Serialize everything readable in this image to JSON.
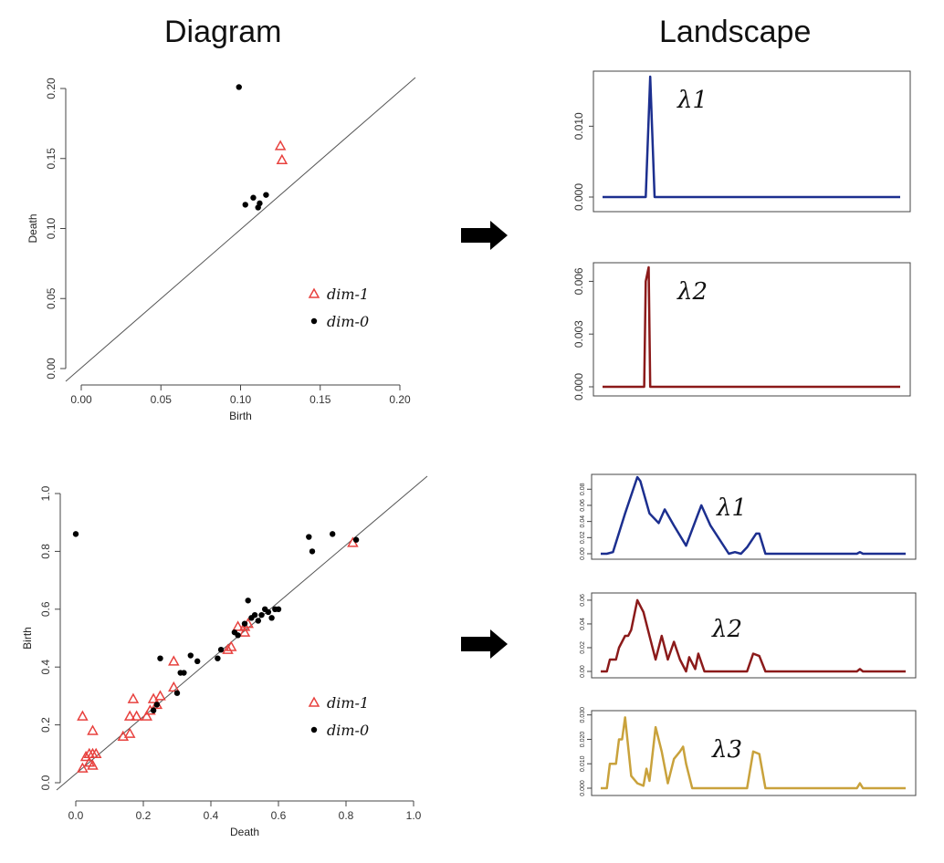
{
  "headings": {
    "left": "Diagram",
    "right": "Landscape"
  },
  "colors": {
    "dim1": "#e8413e",
    "dim0": "#000000",
    "lambda1": "#1c2f8f",
    "lambda2": "#8b1a1a",
    "lambda3": "#c9a23c",
    "diagonal": "#555555"
  },
  "chart_data": [
    {
      "id": "diagram-top",
      "type": "scatter",
      "xlabel": "Birth",
      "ylabel": "Death",
      "xlim": [
        0,
        0.2
      ],
      "ylim": [
        0,
        0.2
      ],
      "xticks": [
        "0.00",
        "0.05",
        "0.10",
        "0.15",
        "0.20"
      ],
      "yticks": [
        "0.00",
        "0.05",
        "0.10",
        "0.15",
        "0.20"
      ],
      "diagonal": true,
      "legend": [
        {
          "label": "dim-1",
          "marker": "triangle"
        },
        {
          "label": "dim-0",
          "marker": "dot"
        }
      ],
      "series": [
        {
          "name": "dim-1",
          "marker": "triangle",
          "points": [
            [
              0.125,
              0.159
            ],
            [
              0.126,
              0.149
            ]
          ]
        },
        {
          "name": "dim-0",
          "marker": "dot",
          "points": [
            [
              0.099,
              0.201
            ],
            [
              0.103,
              0.117
            ],
            [
              0.108,
              0.122
            ],
            [
              0.111,
              0.115
            ],
            [
              0.112,
              0.118
            ],
            [
              0.116,
              0.124
            ]
          ]
        }
      ]
    },
    {
      "id": "diagram-bottom",
      "type": "scatter",
      "xlabel": "Death",
      "ylabel": "Birth",
      "xlim": [
        0,
        1.0
      ],
      "ylim": [
        0,
        1.0
      ],
      "xticks": [
        "0.0",
        "0.2",
        "0.4",
        "0.6",
        "0.8",
        "1.0"
      ],
      "yticks": [
        "0.0",
        "0.2",
        "0.4",
        "0.6",
        "0.8",
        "1.0"
      ],
      "diagonal": true,
      "legend": [
        {
          "label": "dim-1",
          "marker": "triangle"
        },
        {
          "label": "dim-0",
          "marker": "dot"
        }
      ],
      "series": [
        {
          "name": "dim-1",
          "marker": "triangle",
          "points": [
            [
              0.02,
              0.23
            ],
            [
              0.02,
              0.05
            ],
            [
              0.03,
              0.09
            ],
            [
              0.04,
              0.1
            ],
            [
              0.04,
              0.07
            ],
            [
              0.05,
              0.18
            ],
            [
              0.05,
              0.1
            ],
            [
              0.05,
              0.06
            ],
            [
              0.06,
              0.1
            ],
            [
              0.14,
              0.16
            ],
            [
              0.16,
              0.17
            ],
            [
              0.16,
              0.23
            ],
            [
              0.17,
              0.29
            ],
            [
              0.18,
              0.23
            ],
            [
              0.21,
              0.23
            ],
            [
              0.22,
              0.25
            ],
            [
              0.23,
              0.29
            ],
            [
              0.24,
              0.27
            ],
            [
              0.25,
              0.3
            ],
            [
              0.29,
              0.42
            ],
            [
              0.29,
              0.33
            ],
            [
              0.45,
              0.46
            ],
            [
              0.46,
              0.47
            ],
            [
              0.48,
              0.54
            ],
            [
              0.5,
              0.52
            ],
            [
              0.5,
              0.54
            ],
            [
              0.51,
              0.55
            ],
            [
              0.82,
              0.83
            ]
          ]
        },
        {
          "name": "dim-0",
          "marker": "dot",
          "points": [
            [
              0.0,
              0.86
            ],
            [
              0.23,
              0.25
            ],
            [
              0.24,
              0.27
            ],
            [
              0.25,
              0.43
            ],
            [
              0.3,
              0.31
            ],
            [
              0.31,
              0.38
            ],
            [
              0.32,
              0.38
            ],
            [
              0.34,
              0.44
            ],
            [
              0.36,
              0.42
            ],
            [
              0.42,
              0.43
            ],
            [
              0.43,
              0.46
            ],
            [
              0.47,
              0.52
            ],
            [
              0.48,
              0.51
            ],
            [
              0.5,
              0.55
            ],
            [
              0.51,
              0.63
            ],
            [
              0.52,
              0.57
            ],
            [
              0.53,
              0.58
            ],
            [
              0.54,
              0.56
            ],
            [
              0.55,
              0.58
            ],
            [
              0.56,
              0.6
            ],
            [
              0.57,
              0.59
            ],
            [
              0.58,
              0.57
            ],
            [
              0.59,
              0.6
            ],
            [
              0.6,
              0.6
            ],
            [
              0.69,
              0.85
            ],
            [
              0.7,
              0.8
            ],
            [
              0.76,
              0.86
            ],
            [
              0.83,
              0.84
            ]
          ]
        }
      ]
    },
    {
      "id": "landscape-top-1",
      "type": "line",
      "label": "λ1",
      "ylim": [
        0,
        0.017
      ],
      "yticks": [
        "0.000",
        "0.010"
      ],
      "series": [
        {
          "name": "λ1",
          "color": "lambda1",
          "x": [
            0,
            0.12,
            0.145,
            0.16,
            0.175,
            1.0
          ],
          "y": [
            0,
            0,
            0,
            0.017,
            0,
            0
          ]
        }
      ]
    },
    {
      "id": "landscape-top-2",
      "type": "line",
      "label": "λ2",
      "ylim": [
        0,
        0.0068
      ],
      "yticks": [
        "0.000",
        "0.003",
        "0.006"
      ],
      "series": [
        {
          "name": "λ2",
          "color": "lambda2",
          "x": [
            0,
            0.12,
            0.14,
            0.145,
            0.155,
            0.16,
            0.17,
            1.0
          ],
          "y": [
            0,
            0,
            0,
            0.006,
            0.0068,
            0,
            0,
            0
          ]
        }
      ]
    },
    {
      "id": "landscape-bottom-1",
      "type": "line",
      "label": "λ1",
      "ylim": [
        0,
        0.095
      ],
      "yticks": [
        "0.00",
        "0.02",
        "0.04",
        "0.06",
        "0.08"
      ],
      "series": [
        {
          "name": "λ1",
          "color": "lambda1",
          "x": [
            0,
            0.02,
            0.04,
            0.08,
            0.12,
            0.13,
            0.16,
            0.19,
            0.21,
            0.24,
            0.28,
            0.33,
            0.36,
            0.42,
            0.44,
            0.46,
            0.48,
            0.51,
            0.52,
            0.54,
            0.56,
            0.84,
            0.85,
            0.86,
            1.0
          ],
          "y": [
            0,
            0,
            0.002,
            0.05,
            0.095,
            0.09,
            0.05,
            0.038,
            0.055,
            0.035,
            0.01,
            0.06,
            0.035,
            0,
            0.002,
            0,
            0.008,
            0.025,
            0.025,
            0,
            0,
            0,
            0.002,
            0,
            0
          ]
        }
      ]
    },
    {
      "id": "landscape-bottom-2",
      "type": "line",
      "label": "λ2",
      "ylim": [
        0,
        0.063
      ],
      "yticks": [
        "0.00",
        "0.02",
        "0.04",
        "0.06"
      ],
      "series": [
        {
          "name": "λ2",
          "color": "lambda2",
          "x": [
            0,
            0.02,
            0.03,
            0.05,
            0.06,
            0.08,
            0.09,
            0.1,
            0.12,
            0.14,
            0.16,
            0.18,
            0.2,
            0.22,
            0.24,
            0.26,
            0.28,
            0.29,
            0.31,
            0.32,
            0.34,
            0.36,
            0.48,
            0.5,
            0.52,
            0.54,
            0.84,
            0.85,
            0.86,
            1.0
          ],
          "y": [
            0,
            0,
            0.01,
            0.01,
            0.02,
            0.03,
            0.03,
            0.035,
            0.06,
            0.05,
            0.03,
            0.01,
            0.03,
            0.01,
            0.025,
            0.01,
            0,
            0.012,
            0.002,
            0.015,
            0,
            0,
            0,
            0.015,
            0.013,
            0,
            0,
            0.002,
            0,
            0
          ]
        }
      ]
    },
    {
      "id": "landscape-bottom-3",
      "type": "line",
      "label": "λ3",
      "ylim": [
        0,
        0.031
      ],
      "yticks": [
        "0.000",
        "0.010",
        "0.020",
        "0.030"
      ],
      "series": [
        {
          "name": "λ3",
          "color": "lambda3",
          "x": [
            0,
            0.02,
            0.03,
            0.05,
            0.06,
            0.07,
            0.08,
            0.1,
            0.12,
            0.14,
            0.15,
            0.16,
            0.18,
            0.2,
            0.22,
            0.24,
            0.26,
            0.27,
            0.28,
            0.3,
            0.33,
            0.48,
            0.5,
            0.52,
            0.54,
            0.84,
            0.85,
            0.86,
            1.0
          ],
          "y": [
            0,
            0,
            0.01,
            0.01,
            0.02,
            0.02,
            0.029,
            0.005,
            0.002,
            0.001,
            0.008,
            0.003,
            0.025,
            0.015,
            0.002,
            0.012,
            0.015,
            0.017,
            0.01,
            0,
            0,
            0,
            0.015,
            0.014,
            0,
            0,
            0.002,
            0,
            0
          ]
        }
      ]
    }
  ]
}
